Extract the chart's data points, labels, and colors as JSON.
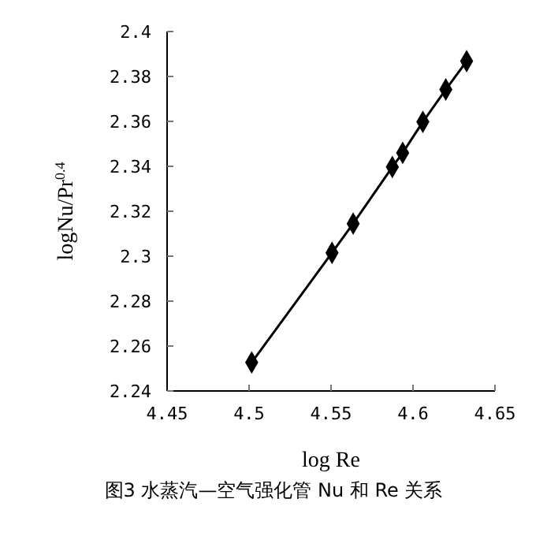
{
  "chart_data": {
    "type": "line",
    "xlabel": "log Re",
    "ylabel": "logNu/Pr$^{0.4}$",
    "annotations": [
      "图3  水蒸汽—空气强化管 Nu 和 Re 关系"
    ],
    "x": [
      4.5016,
      4.5506,
      4.5635,
      4.5874,
      4.5937,
      4.606,
      4.62,
      4.6327
    ],
    "series": [
      {
        "color": "#000000",
        "values": [
          2.2527,
          2.3015,
          2.3145,
          2.3397,
          2.346,
          2.3598,
          2.3742,
          2.3868
        ]
      }
    ],
    "xlim": [
      4.45,
      4.65
    ],
    "xticks": [
      4.45,
      4.5,
      4.55,
      4.6,
      4.65
    ],
    "ylim": [
      2.24,
      2.4
    ],
    "yticks": [
      2.24,
      2.26,
      2.28,
      2.3,
      2.32,
      2.34,
      2.36,
      2.38,
      2.4
    ],
    "grid": false,
    "legend": false,
    "marker": "diamond",
    "line_style": "solid"
  }
}
